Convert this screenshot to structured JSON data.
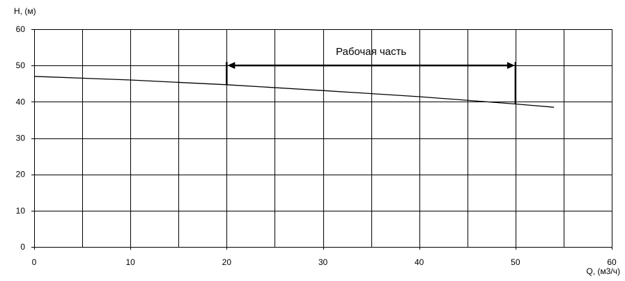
{
  "chart_data": {
    "type": "line",
    "xlabel": "Q, (м3/ч)",
    "ylabel": "H, (м)",
    "xlim": [
      0,
      60
    ],
    "ylim": [
      0,
      60
    ],
    "x_ticks": [
      0,
      10,
      20,
      30,
      40,
      50,
      60
    ],
    "y_ticks": [
      0,
      10,
      20,
      30,
      40,
      50,
      60
    ],
    "x_grid_step": 5,
    "y_grid_step": 10,
    "grid": true,
    "legend": "none",
    "series": [
      {
        "x": [
          0,
          10,
          20,
          30,
          40,
          50,
          54
        ],
        "y": [
          47.0,
          46.0,
          44.7,
          43.1,
          41.4,
          39.4,
          38.5
        ]
      }
    ],
    "annotation": {
      "text": "Рабочая часть",
      "x_start": 20,
      "x_end": 50,
      "y": 50
    },
    "colors": {
      "line": "#000000",
      "grid": "#000000",
      "background": "#ffffff"
    }
  }
}
